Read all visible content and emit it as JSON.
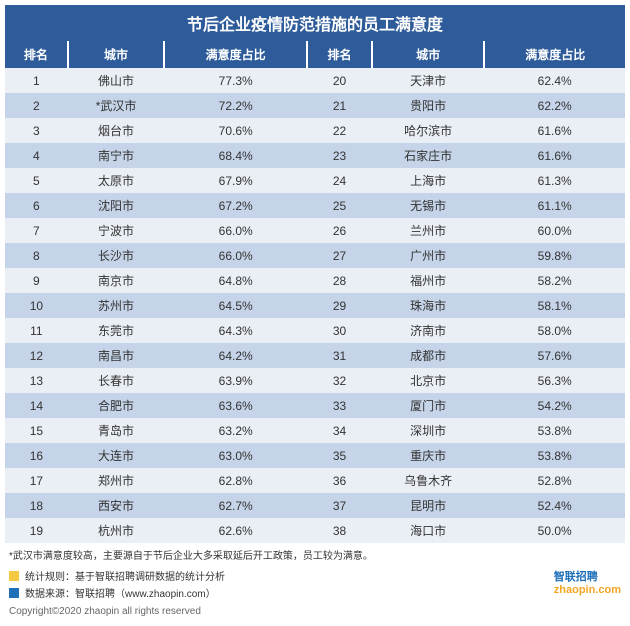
{
  "title": "节后企业疫情防范措施的员工满意度",
  "headers": {
    "rank": "排名",
    "city": "城市",
    "pct": "满意度占比"
  },
  "left": [
    {
      "r": "1",
      "c": "佛山市",
      "p": "77.3%"
    },
    {
      "r": "2",
      "c": "*武汉市",
      "p": "72.2%"
    },
    {
      "r": "3",
      "c": "烟台市",
      "p": "70.6%"
    },
    {
      "r": "4",
      "c": "南宁市",
      "p": "68.4%"
    },
    {
      "r": "5",
      "c": "太原市",
      "p": "67.9%"
    },
    {
      "r": "6",
      "c": "沈阳市",
      "p": "67.2%"
    },
    {
      "r": "7",
      "c": "宁波市",
      "p": "66.0%"
    },
    {
      "r": "8",
      "c": "长沙市",
      "p": "66.0%"
    },
    {
      "r": "9",
      "c": "南京市",
      "p": "64.8%"
    },
    {
      "r": "10",
      "c": "苏州市",
      "p": "64.5%"
    },
    {
      "r": "11",
      "c": "东莞市",
      "p": "64.3%"
    },
    {
      "r": "12",
      "c": "南昌市",
      "p": "64.2%"
    },
    {
      "r": "13",
      "c": "长春市",
      "p": "63.9%"
    },
    {
      "r": "14",
      "c": "合肥市",
      "p": "63.6%"
    },
    {
      "r": "15",
      "c": "青岛市",
      "p": "63.2%"
    },
    {
      "r": "16",
      "c": "大连市",
      "p": "63.0%"
    },
    {
      "r": "17",
      "c": "郑州市",
      "p": "62.8%"
    },
    {
      "r": "18",
      "c": "西安市",
      "p": "62.7%"
    },
    {
      "r": "19",
      "c": "杭州市",
      "p": "62.6%"
    }
  ],
  "right": [
    {
      "r": "20",
      "c": "天津市",
      "p": "62.4%"
    },
    {
      "r": "21",
      "c": "贵阳市",
      "p": "62.2%"
    },
    {
      "r": "22",
      "c": "哈尔滨市",
      "p": "61.6%"
    },
    {
      "r": "23",
      "c": "石家庄市",
      "p": "61.6%"
    },
    {
      "r": "24",
      "c": "上海市",
      "p": "61.3%"
    },
    {
      "r": "25",
      "c": "无锡市",
      "p": "61.1%"
    },
    {
      "r": "26",
      "c": "兰州市",
      "p": "60.0%"
    },
    {
      "r": "27",
      "c": "广州市",
      "p": "59.8%"
    },
    {
      "r": "28",
      "c": "福州市",
      "p": "58.2%"
    },
    {
      "r": "29",
      "c": "珠海市",
      "p": "58.1%"
    },
    {
      "r": "30",
      "c": "济南市",
      "p": "58.0%"
    },
    {
      "r": "31",
      "c": "成都市",
      "p": "57.6%"
    },
    {
      "r": "32",
      "c": "北京市",
      "p": "56.3%"
    },
    {
      "r": "33",
      "c": "厦门市",
      "p": "54.2%"
    },
    {
      "r": "34",
      "c": "深圳市",
      "p": "53.8%"
    },
    {
      "r": "35",
      "c": "重庆市",
      "p": "53.8%"
    },
    {
      "r": "36",
      "c": "乌鲁木齐",
      "p": "52.8%"
    },
    {
      "r": "37",
      "c": "昆明市",
      "p": "52.4%"
    },
    {
      "r": "38",
      "c": "海口市",
      "p": "50.0%"
    }
  ],
  "note": "*武汉市满意度较高，主要源自于节后企业大多采取延后开工政策，员工较为满意。",
  "legend": {
    "rule_label": "统计规则：",
    "rule_text": "基于智联招聘调研数据的统计分析",
    "src_label": "数据来源：",
    "src_text": "智联招聘（www.zhaopin.com）",
    "rule_color": "#f5c842",
    "src_color": "#1e6fb8"
  },
  "logo": {
    "cn": "智联招聘",
    "en": "zhaopin.com"
  },
  "copyright": "Copyright©2020 zhaopin all rights reserved",
  "colors": {
    "header_bg": "#2e5c9a",
    "row_odd": "#eaeef5",
    "row_even": "#c5d4e8"
  }
}
